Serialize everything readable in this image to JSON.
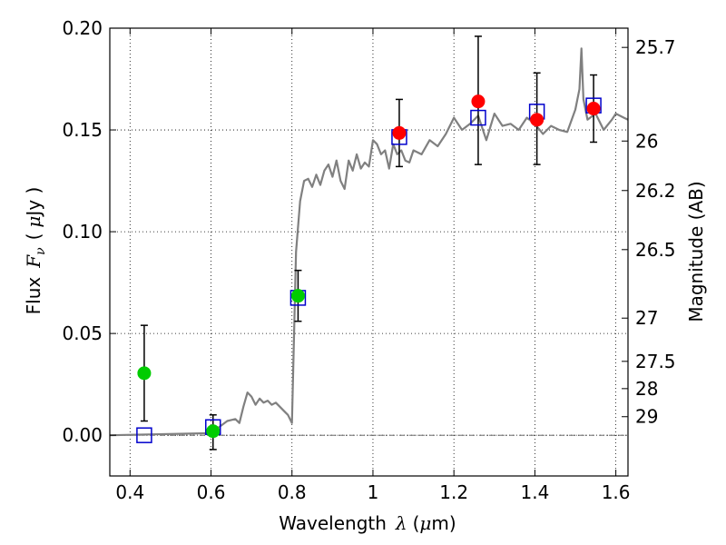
{
  "chart_data": {
    "type": "scatter",
    "xlabel": "Wavelength",
    "xlabel_symbol": "λ",
    "xlabel_unit_open": "(",
    "xlabel_unit_mu": "μ",
    "xlabel_unit_rest": "m)",
    "ylabel": "Flux",
    "ylabel_symbol": "F",
    "ylabel_subscript": "ν",
    "ylabel_unit_open": "(",
    "ylabel_unit_mu": "μ",
    "ylabel_unit_rest": "Jy )",
    "y2label": "Magnitude (AB)",
    "xlim": [
      0.35,
      1.63
    ],
    "ylim": [
      -0.02,
      0.2
    ],
    "grid": true,
    "x_ticks": [
      {
        "value": 0.4,
        "label": "0.4"
      },
      {
        "value": 0.6,
        "label": "0.6"
      },
      {
        "value": 0.8,
        "label": "0.8"
      },
      {
        "value": 1.0,
        "label": "1"
      },
      {
        "value": 1.2,
        "label": "1.2"
      },
      {
        "value": 1.4,
        "label": "1.4"
      },
      {
        "value": 1.6,
        "label": "1.6"
      }
    ],
    "y_ticks": [
      {
        "value": 0.0,
        "label": "0.00"
      },
      {
        "value": 0.05,
        "label": "0.05"
      },
      {
        "value": 0.1,
        "label": "0.10"
      },
      {
        "value": 0.15,
        "label": "0.15"
      },
      {
        "value": 0.2,
        "label": "0.20"
      }
    ],
    "y2_ticks": [
      {
        "value": 25.7,
        "label": "25.7"
      },
      {
        "value": 26,
        "label": "26"
      },
      {
        "value": 26.2,
        "label": "26.2"
      },
      {
        "value": 26.5,
        "label": "26.5"
      },
      {
        "value": 27,
        "label": "27"
      },
      {
        "value": 27.5,
        "label": "27.5"
      },
      {
        "value": 28,
        "label": "28"
      },
      {
        "value": 29,
        "label": "29"
      }
    ],
    "model_spectrum": {
      "color": "#808080",
      "x": [
        0.35,
        0.6,
        0.64,
        0.66,
        0.67,
        0.68,
        0.69,
        0.7,
        0.71,
        0.72,
        0.73,
        0.74,
        0.75,
        0.76,
        0.77,
        0.78,
        0.79,
        0.8,
        0.81,
        0.82,
        0.83,
        0.84,
        0.85,
        0.86,
        0.87,
        0.88,
        0.89,
        0.9,
        0.91,
        0.92,
        0.93,
        0.94,
        0.95,
        0.96,
        0.97,
        0.98,
        0.99,
        1.0,
        1.01,
        1.02,
        1.03,
        1.04,
        1.05,
        1.06,
        1.07,
        1.08,
        1.09,
        1.1,
        1.12,
        1.14,
        1.16,
        1.18,
        1.2,
        1.22,
        1.24,
        1.26,
        1.28,
        1.3,
        1.32,
        1.34,
        1.36,
        1.38,
        1.4,
        1.42,
        1.44,
        1.46,
        1.48,
        1.5,
        1.51,
        1.515,
        1.52,
        1.53,
        1.55,
        1.57,
        1.59,
        1.6,
        1.62,
        1.63
      ],
      "y": [
        0.0,
        0.001,
        0.007,
        0.008,
        0.006,
        0.014,
        0.021,
        0.019,
        0.015,
        0.018,
        0.016,
        0.017,
        0.015,
        0.016,
        0.014,
        0.012,
        0.01,
        0.006,
        0.09,
        0.115,
        0.125,
        0.126,
        0.122,
        0.128,
        0.123,
        0.13,
        0.133,
        0.127,
        0.135,
        0.125,
        0.121,
        0.135,
        0.13,
        0.138,
        0.131,
        0.134,
        0.132,
        0.145,
        0.143,
        0.138,
        0.14,
        0.131,
        0.143,
        0.138,
        0.14,
        0.135,
        0.134,
        0.14,
        0.138,
        0.145,
        0.142,
        0.148,
        0.156,
        0.15,
        0.153,
        0.157,
        0.145,
        0.158,
        0.152,
        0.153,
        0.15,
        0.156,
        0.153,
        0.148,
        0.152,
        0.15,
        0.149,
        0.16,
        0.17,
        0.19,
        0.165,
        0.155,
        0.158,
        0.15,
        0.155,
        0.158,
        0.156,
        0.155
      ]
    },
    "series": [
      {
        "marker": "circle",
        "color": "#00cc00",
        "points": [
          {
            "x": 0.435,
            "y": 0.0305,
            "ylow": 0.007,
            "yhigh": 0.054
          },
          {
            "x": 0.605,
            "y": 0.002,
            "ylow": -0.007,
            "yhigh": 0.01
          },
          {
            "x": 0.815,
            "y": 0.0685,
            "ylow": 0.056,
            "yhigh": 0.081
          }
        ]
      },
      {
        "marker": "circle",
        "color": "#ff0000",
        "points": [
          {
            "x": 1.065,
            "y": 0.1485,
            "ylow": 0.132,
            "yhigh": 0.165
          },
          {
            "x": 1.26,
            "y": 0.164,
            "ylow": 0.133,
            "yhigh": 0.196
          },
          {
            "x": 1.405,
            "y": 0.155,
            "ylow": 0.133,
            "yhigh": 0.178
          },
          {
            "x": 1.545,
            "y": 0.1605,
            "ylow": 0.144,
            "yhigh": 0.177
          }
        ]
      },
      {
        "marker": "square",
        "color": "#0000cc",
        "points": [
          {
            "x": 0.435,
            "y": 0.0
          },
          {
            "x": 0.605,
            "y": 0.004
          },
          {
            "x": 0.815,
            "y": 0.0675
          },
          {
            "x": 1.065,
            "y": 0.1465
          },
          {
            "x": 1.26,
            "y": 0.156
          },
          {
            "x": 1.405,
            "y": 0.159
          },
          {
            "x": 1.545,
            "y": 0.162
          }
        ]
      }
    ]
  }
}
